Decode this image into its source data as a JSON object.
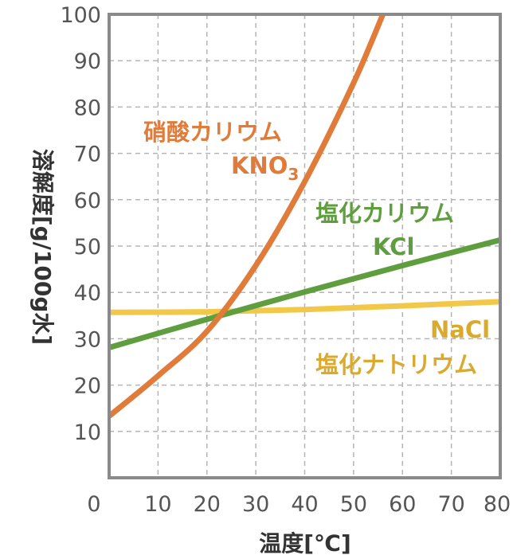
{
  "chart_data": {
    "type": "line",
    "title": "",
    "xlabel": "温度[℃]",
    "ylabel": "溶解度[g/100g水]",
    "xlim": [
      0,
      80
    ],
    "ylim": [
      0,
      100
    ],
    "x_ticks": [
      "0",
      "10",
      "20",
      "30",
      "40",
      "50",
      "60",
      "70",
      "80"
    ],
    "y_ticks": [
      "10",
      "20",
      "30",
      "40",
      "50",
      "60",
      "70",
      "80",
      "90",
      "100"
    ],
    "grid": true,
    "series": [
      {
        "name": "硝酸カリウム",
        "formula": "KNO",
        "formula_sub": "3",
        "color": "#e07b39",
        "x": [
          0,
          10,
          20,
          30,
          40,
          50,
          56
        ],
        "y": [
          13.3,
          22.0,
          31.6,
          45.8,
          63.9,
          85.2,
          100
        ]
      },
      {
        "name": "塩化カリウム",
        "formula": "KCl",
        "color": "#5f9e3f",
        "x": [
          0,
          20,
          40,
          60,
          80
        ],
        "y": [
          28.1,
          34.2,
          40.1,
          45.8,
          51.3
        ]
      },
      {
        "name": "塩化ナトリウム",
        "formula": "NaCl",
        "color": "#f2c84b",
        "x": [
          0,
          20,
          40,
          60,
          80
        ],
        "y": [
          35.7,
          35.8,
          36.3,
          37.1,
          38.0
        ]
      }
    ]
  }
}
